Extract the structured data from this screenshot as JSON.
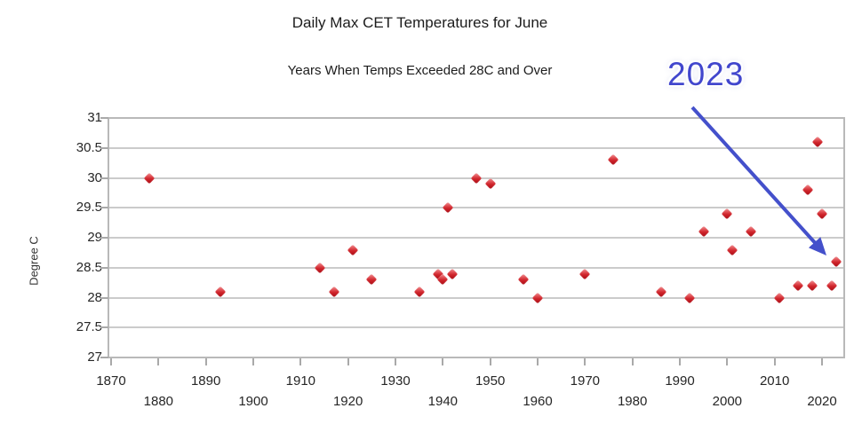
{
  "chart_data": {
    "type": "scatter",
    "title": "Daily Max CET Temperatures for June",
    "subtitle": "Years When Temps Exceeded 28C and Over",
    "xlabel": "",
    "ylabel": "Degree C",
    "xlim": [
      1869.4,
      2024.7
    ],
    "ylim": [
      27,
      31
    ],
    "x_ticks": [
      1870,
      1880,
      1890,
      1900,
      1910,
      1920,
      1930,
      1940,
      1950,
      1960,
      1970,
      1980,
      1990,
      2000,
      2010,
      2020
    ],
    "y_ticks": [
      31,
      30.5,
      30,
      29.5,
      29,
      28.5,
      28,
      27.5,
      27
    ],
    "grid": "horizontal-only",
    "legend": "none",
    "marker": {
      "shape": "diamond",
      "color": "#cf1b22"
    },
    "points": [
      {
        "year": 1878,
        "temp": 30.0
      },
      {
        "year": 1893,
        "temp": 28.1
      },
      {
        "year": 1914,
        "temp": 28.5
      },
      {
        "year": 1917,
        "temp": 28.1
      },
      {
        "year": 1921,
        "temp": 28.8
      },
      {
        "year": 1925,
        "temp": 28.3
      },
      {
        "year": 1935,
        "temp": 28.1
      },
      {
        "year": 1939,
        "temp": 28.4
      },
      {
        "year": 1940,
        "temp": 28.3
      },
      {
        "year": 1941,
        "temp": 29.5
      },
      {
        "year": 1942,
        "temp": 28.4
      },
      {
        "year": 1947,
        "temp": 30.0
      },
      {
        "year": 1950,
        "temp": 29.9
      },
      {
        "year": 1957,
        "temp": 28.3
      },
      {
        "year": 1960,
        "temp": 28.0
      },
      {
        "year": 1970,
        "temp": 28.4
      },
      {
        "year": 1976,
        "temp": 30.3
      },
      {
        "year": 1986,
        "temp": 28.1
      },
      {
        "year": 1992,
        "temp": 28.0
      },
      {
        "year": 1995,
        "temp": 29.1
      },
      {
        "year": 2000,
        "temp": 29.4
      },
      {
        "year": 2001,
        "temp": 28.8
      },
      {
        "year": 2005,
        "temp": 29.1
      },
      {
        "year": 2011,
        "temp": 28.0
      },
      {
        "year": 2015,
        "temp": 28.2
      },
      {
        "year": 2017,
        "temp": 29.8
      },
      {
        "year": 2018,
        "temp": 28.2
      },
      {
        "year": 2019,
        "temp": 30.6
      },
      {
        "year": 2020,
        "temp": 29.4
      },
      {
        "year": 2022,
        "temp": 28.2
      },
      {
        "year": 2023,
        "temp": 28.6
      }
    ],
    "annotation": {
      "text": "2023",
      "points_to": {
        "year": 2023,
        "temp": 28.6
      },
      "color": "#4450cb"
    }
  }
}
